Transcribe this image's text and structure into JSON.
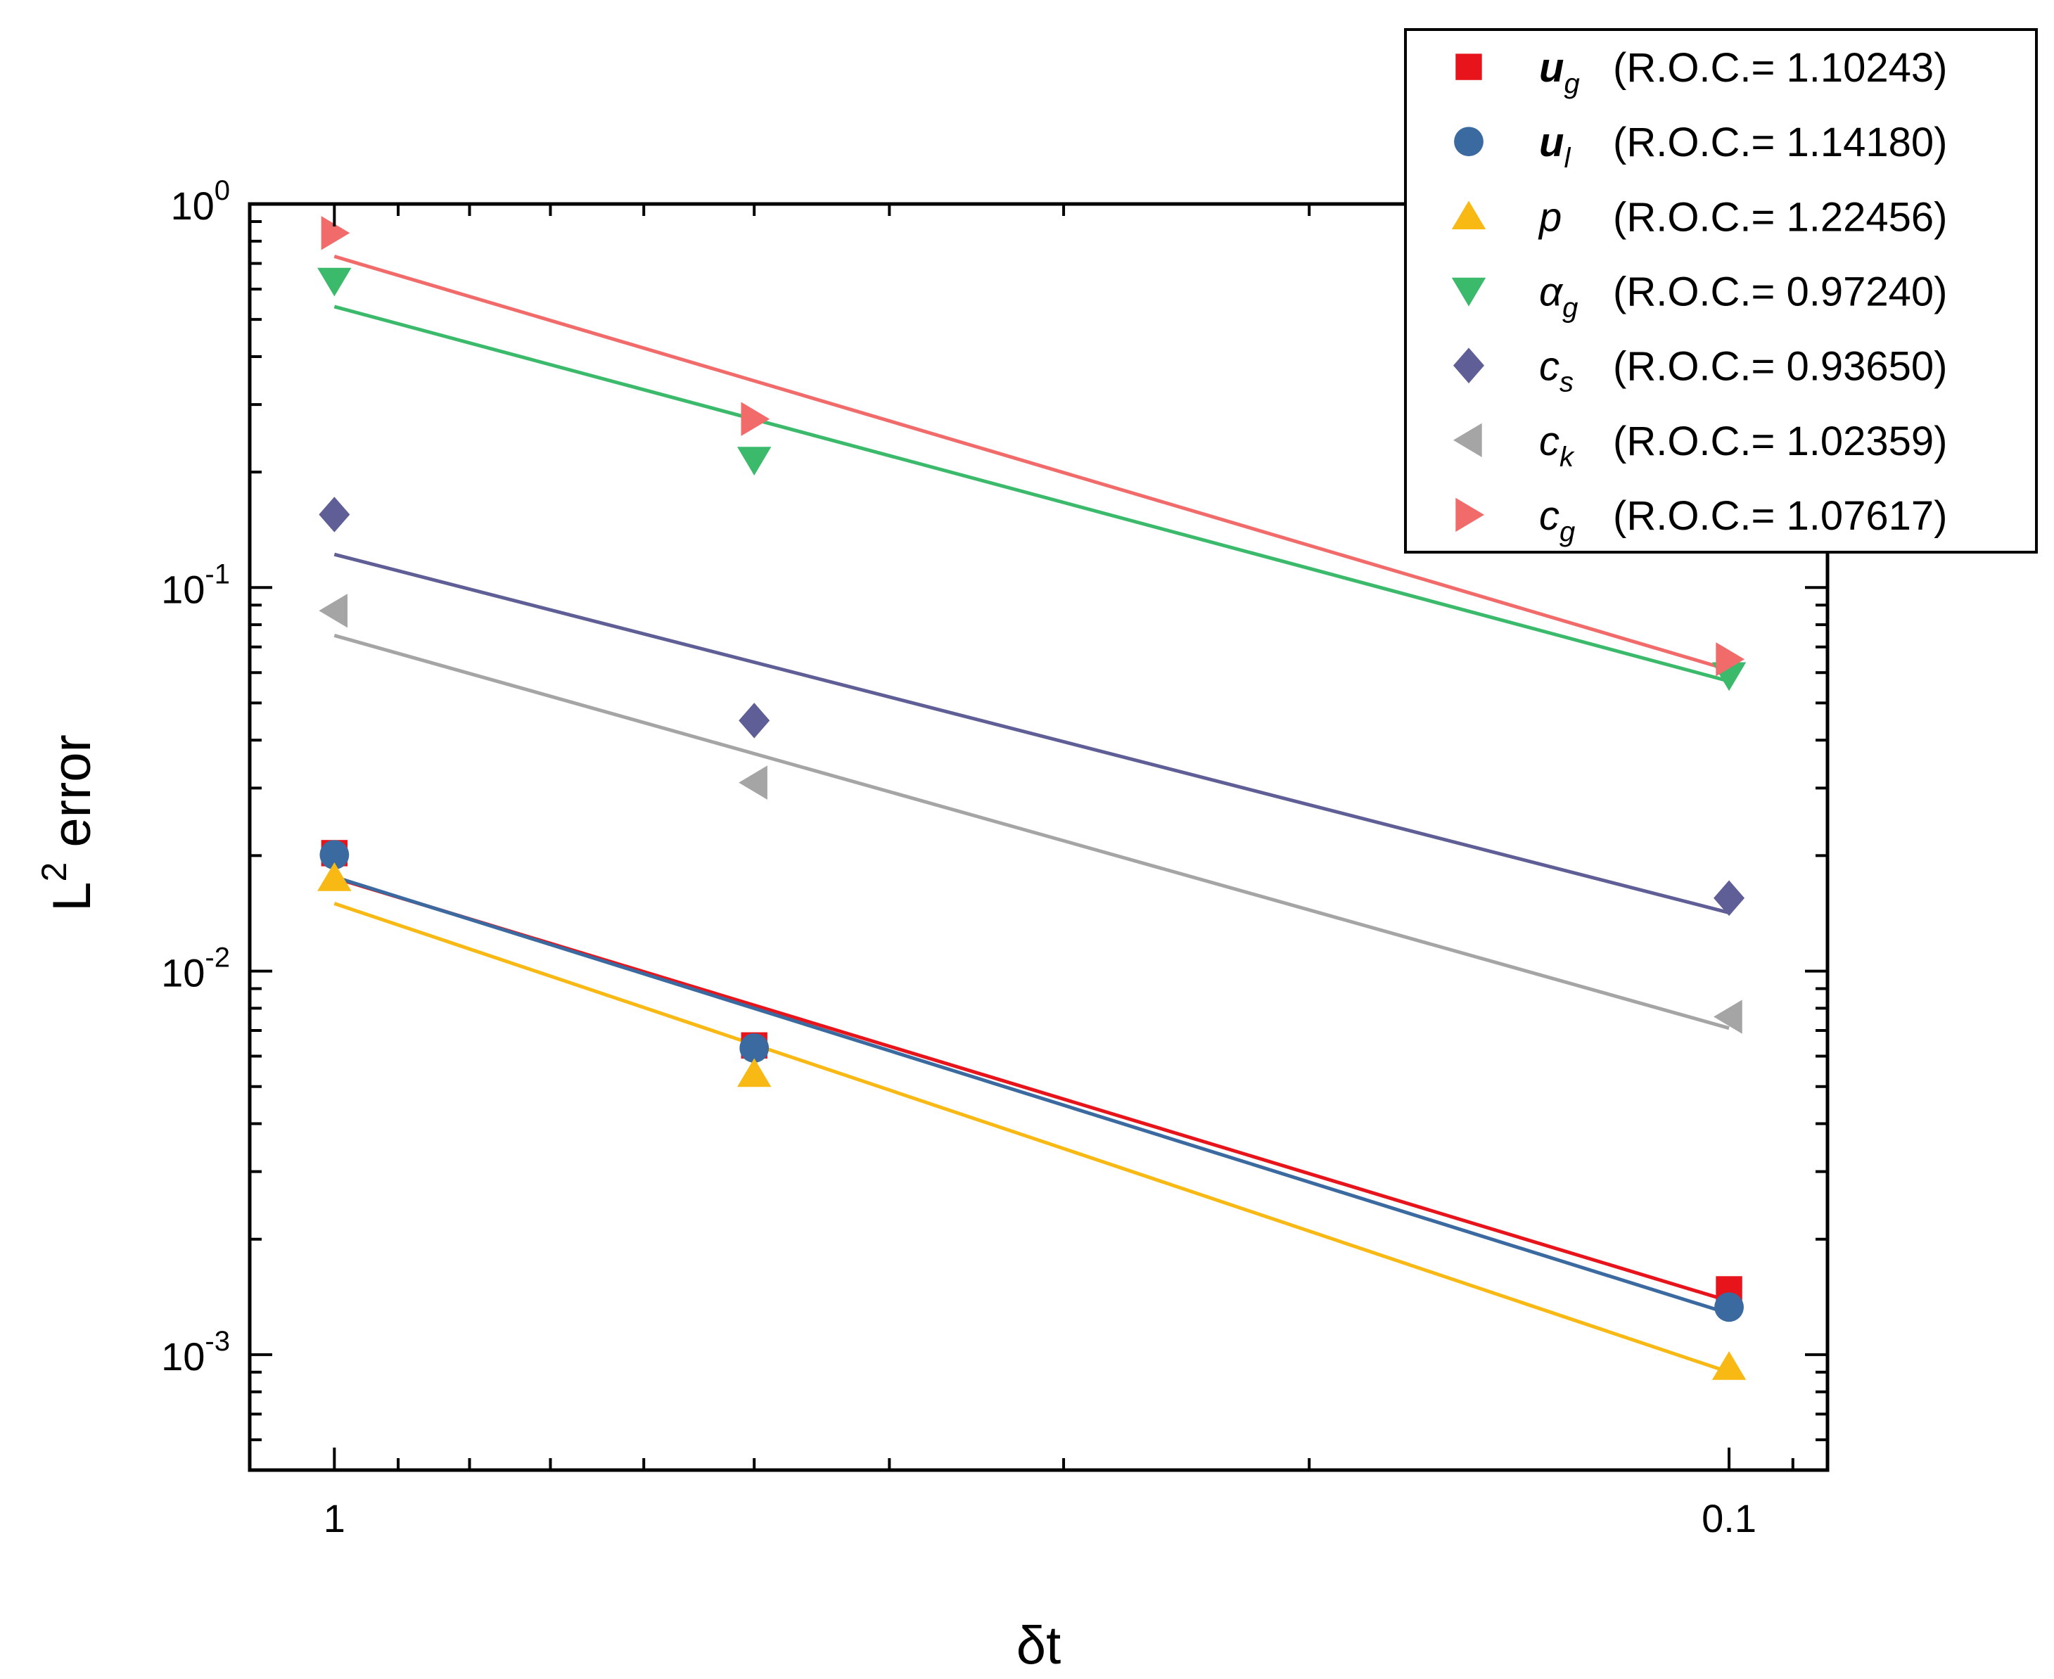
{
  "chart_data": {
    "type": "scatter",
    "xscale": "log",
    "yscale": "log",
    "x_reversed": true,
    "xlabel": "δt",
    "ylabel_main": "L",
    "ylabel_sup": "2",
    "ylabel_rest": " error",
    "xlim": [
      1.15,
      0.085
    ],
    "ylim": [
      0.0005,
      1
    ],
    "x_ticks": [
      {
        "value": 1,
        "label": "1"
      },
      {
        "value": 0.1,
        "label": "0.1"
      }
    ],
    "y_ticks": [
      {
        "value": 1,
        "base": "10",
        "exp": "0"
      },
      {
        "value": 0.1,
        "base": "10",
        "exp": "-1"
      },
      {
        "value": 0.01,
        "base": "10",
        "exp": "-2"
      },
      {
        "value": 0.001,
        "base": "10",
        "exp": "-3"
      }
    ],
    "x": [
      1,
      0.5,
      0.1
    ],
    "legend_position": "top-right",
    "series": [
      {
        "id": "ug",
        "sym": "u",
        "sub": "g",
        "bold": true,
        "roc_text": "(R.O.C.= 1.10243)",
        "roc": 1.10243,
        "marker": "square",
        "color": "#e8141b",
        "values": [
          0.0203,
          0.0064,
          0.00148
        ],
        "fit": [
          0.0175,
          0.00138
        ]
      },
      {
        "id": "ul",
        "sym": "u",
        "sub": "l",
        "bold": true,
        "roc_text": "(R.O.C.= 1.14180)",
        "roc": 1.1418,
        "marker": "circle",
        "color": "#3a6aa0",
        "values": [
          0.0201,
          0.0063,
          0.00133
        ],
        "fit": [
          0.0176,
          0.00128
        ]
      },
      {
        "id": "p",
        "sym": "p",
        "sub": "",
        "bold": false,
        "roc_text": "(R.O.C.= 1.22456)",
        "roc": 1.22456,
        "marker": "triangle-up",
        "color": "#f9b915",
        "values": [
          0.0175,
          0.0054,
          0.00093
        ],
        "fit": [
          0.015,
          0.0009
        ]
      },
      {
        "id": "alphag",
        "sym": "α",
        "sub": "g",
        "bold": false,
        "roc_text": "(R.O.C.= 0.97240)",
        "roc": 0.9724,
        "marker": "triangle-down",
        "color": "#3cba6b",
        "values": [
          0.63,
          0.215,
          0.059
        ],
        "fit": [
          0.54,
          0.057
        ]
      },
      {
        "id": "cs",
        "sym": "c",
        "sub": "s",
        "bold": false,
        "roc_text": "(R.O.C.= 0.93650)",
        "roc": 0.9365,
        "marker": "diamond",
        "color": "#5f5e96",
        "values": [
          0.155,
          0.045,
          0.0155
        ],
        "fit": [
          0.122,
          0.0142
        ]
      },
      {
        "id": "ck",
        "sym": "c",
        "sub": "k",
        "bold": false,
        "roc_text": "(R.O.C.= 1.02359)",
        "roc": 1.02359,
        "marker": "triangle-left",
        "color": "#a5a5a5",
        "values": [
          0.087,
          0.031,
          0.0076
        ],
        "fit": [
          0.075,
          0.0071
        ]
      },
      {
        "id": "cg",
        "sym": "c",
        "sub": "g",
        "bold": false,
        "roc_text": "(R.O.C.= 1.07617)",
        "roc": 1.07617,
        "marker": "triangle-right",
        "color": "#f26b6b",
        "values": [
          0.84,
          0.275,
          0.065
        ],
        "fit": [
          0.73,
          0.061
        ]
      }
    ]
  }
}
